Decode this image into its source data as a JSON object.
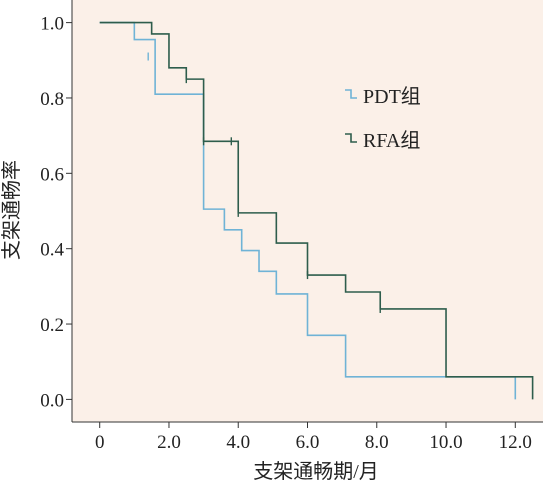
{
  "chart_data": {
    "type": "line",
    "subtype": "kaplan-meier-step",
    "title": "",
    "xlabel": "支架通畅期/月",
    "ylabel": "支架通畅率",
    "xlim": [
      -0.8,
      12.8
    ],
    "ylim": [
      -0.06,
      1.06
    ],
    "xticks": [
      0,
      2,
      4,
      6,
      8,
      10,
      12
    ],
    "xtick_labels": [
      "0",
      "2.0",
      "4.0",
      "6.0",
      "8.0",
      "10.0",
      "12.0"
    ],
    "yticks": [
      0,
      0.2,
      0.4,
      0.6,
      0.8,
      1.0
    ],
    "ytick_labels": [
      "0.0",
      "0.2",
      "0.4",
      "0.6",
      "0.8",
      "1.0"
    ],
    "grid": false,
    "legend_position": "right",
    "plot_background": "#fbf0e8",
    "series": [
      {
        "name": "PDT组",
        "color": "#6fb3d6",
        "steps": [
          [
            0,
            1.0
          ],
          [
            1.0,
            0.955
          ],
          [
            1.6,
            0.81
          ],
          [
            3.0,
            0.505
          ],
          [
            3.6,
            0.45
          ],
          [
            4.1,
            0.395
          ],
          [
            4.6,
            0.34
          ],
          [
            5.1,
            0.28
          ],
          [
            6.0,
            0.17
          ],
          [
            7.1,
            0.06
          ],
          [
            12.0,
            0.0
          ]
        ],
        "end_x": 12.0,
        "censored": [
          [
            1.4,
            0.91
          ]
        ]
      },
      {
        "name": "RFA组",
        "color": "#2e5d4c",
        "steps": [
          [
            0,
            1.0
          ],
          [
            1.5,
            0.97
          ],
          [
            2.0,
            0.88
          ],
          [
            2.5,
            0.85
          ],
          [
            3.0,
            0.685
          ],
          [
            4.0,
            0.495
          ],
          [
            5.1,
            0.415
          ],
          [
            6.0,
            0.33
          ],
          [
            7.1,
            0.285
          ],
          [
            8.1,
            0.24
          ],
          [
            10.0,
            0.06
          ],
          [
            12.5,
            0.0
          ]
        ],
        "end_x": 12.5,
        "censored": [
          [
            2.5,
            0.85
          ],
          [
            3.0,
            0.685
          ],
          [
            3.8,
            0.685
          ],
          [
            4.0,
            0.495
          ],
          [
            6.0,
            0.33
          ],
          [
            8.1,
            0.24
          ]
        ]
      }
    ]
  }
}
